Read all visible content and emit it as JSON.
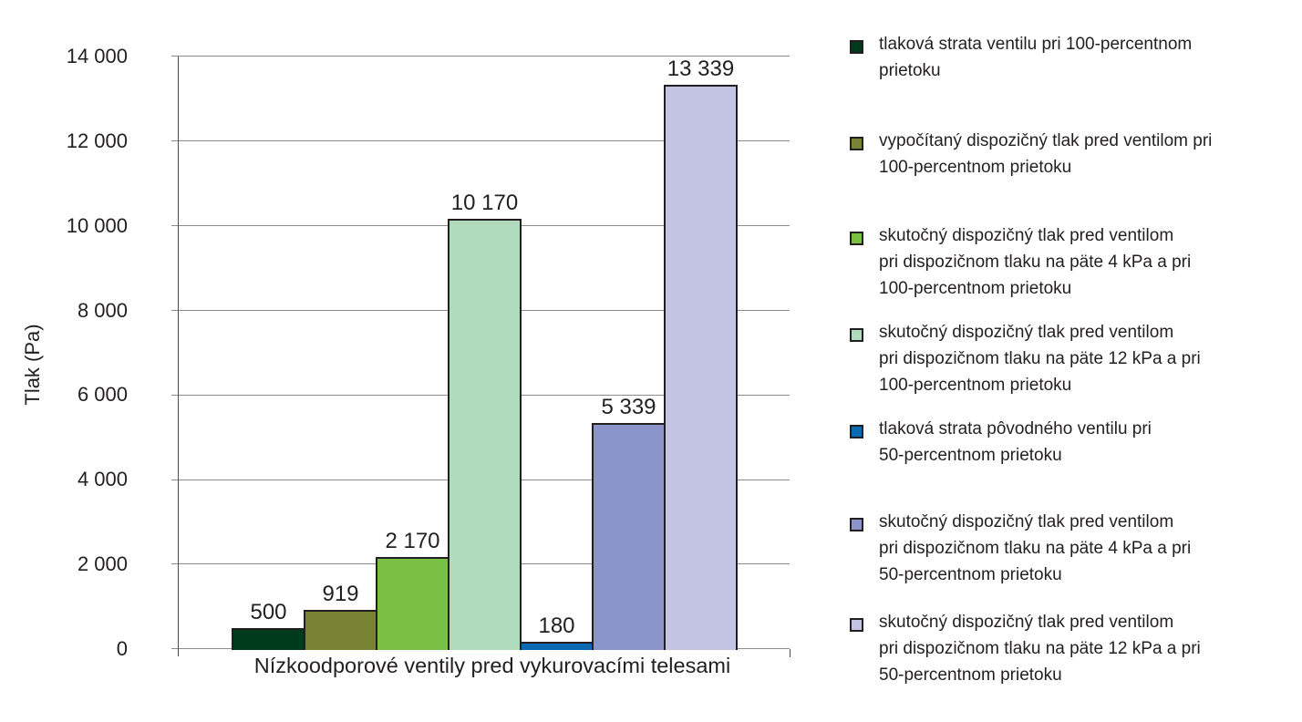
{
  "chart_data": {
    "type": "bar",
    "title": "",
    "xlabel": "",
    "ylabel": "Tlak (Pa)",
    "category": "Nízkoodporové ventily pred vykurovacími telesami",
    "categories": [
      "Nízkoodporové ventily pred vykurovacími telesami"
    ],
    "ylim": [
      0,
      14000
    ],
    "yticks": [
      0,
      2000,
      4000,
      6000,
      8000,
      10000,
      12000,
      14000
    ],
    "ytick_labels": [
      "0",
      "2 000",
      "4 000",
      "6 000",
      "8 000",
      "10 000",
      "12 000",
      "14 000"
    ],
    "grid": true,
    "legend_position": "right",
    "series": [
      {
        "name": "tlaková strata ventilu pri 100-percentnom prietoku",
        "values": [
          500
        ],
        "label": "500",
        "color": "#003a1c"
      },
      {
        "name": "vypočítaný dispozičný tlak pred ventilom pri 100-percentnom prietoku",
        "values": [
          919
        ],
        "label": "919",
        "color": "#788434"
      },
      {
        "name": "skutočný dispozičný tlak pred ventilom pri dispozičnom tlaku na päte 4 kPa a pri 100-percentnom prietoku",
        "values": [
          2170
        ],
        "label": "2 170",
        "color": "#78bf43"
      },
      {
        "name": "skutočný dispozičný tlak pred ventilom pri dispozičnom tlaku na päte 12 kPa a pri 100-percentnom prietoku",
        "values": [
          10170
        ],
        "label": "10 170",
        "color": "#b1dbbd"
      },
      {
        "name": "tlaková strata pôvodného ventilu pri 50-percentnom prietoku",
        "values": [
          180
        ],
        "label": "180",
        "color": "#0a6ab4"
      },
      {
        "name": "skutočný dispozičný tlak pred ventilom pri dispozičnom tlaku na päte 4 kPa a pri 50-percentnom prietoku",
        "values": [
          5339
        ],
        "label": "5 339",
        "color": "#8c95cb"
      },
      {
        "name": "skutočný dispozičný tlak pred ventilom pri dispozičnom tlaku na päte 12 kPa a pri 50-percentnom prietoku",
        "values": [
          13339
        ],
        "label": "13 339",
        "color": "#c3c4e3"
      }
    ]
  },
  "legend": [
    {
      "text": "tlaková strata ventilu pri 100-percentnom\nprietoku"
    },
    {
      "text": "vypočítaný dispozičný tlak pred ventilom pri\n100-percentnom prietoku"
    },
    {
      "text": "skutočný dispozičný tlak pred ventilom\npri dispozičnom tlaku na päte 4 kPa a pri\n100-percentnom prietoku"
    },
    {
      "text": "skutočný dispozičný tlak pred ventilom\npri dispozičnom tlaku na päte 12 kPa a pri\n100-percentnom prietoku"
    },
    {
      "text": "tlaková strata pôvodného ventilu pri\n50-percentnom prietoku"
    },
    {
      "text": "skutočný dispozičný tlak pred ventilom\npri dispozičnom tlaku na päte 4 kPa a pri\n50-percentnom prietoku"
    },
    {
      "text": "skutočný dispozičný tlak pred ventilom\npri dispozičnom tlaku na päte 12 kPa a pri\n50-percentnom prietoku"
    }
  ]
}
